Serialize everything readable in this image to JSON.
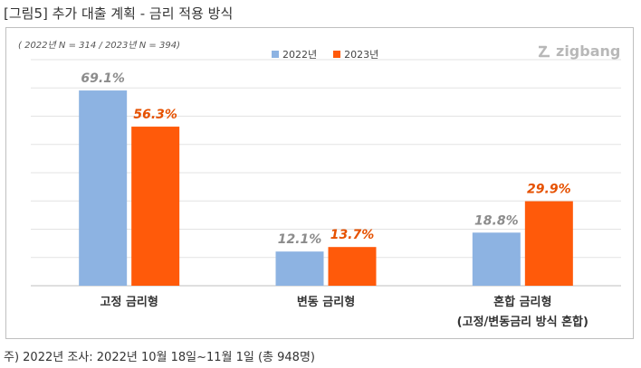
{
  "title": "[그림5] 추가 대출 계획 - 금리 적용 방식",
  "sample_note": "( 2022년 N = 314 / 2023년 N = 394)",
  "logo_text": "zigbang",
  "footnote": "주) 2022년 조사: 2022년 10월 18일~11월 1일 (총 948명)",
  "colors": {
    "2022": "#8db3e2",
    "2023": "#ff5a0a",
    "label2022": "#8c8c8c",
    "label2023": "#e65100"
  },
  "chart_data": {
    "type": "bar",
    "categories": [
      [
        "고정 금리형"
      ],
      [
        "변동 금리형"
      ],
      [
        "혼합 금리형",
        "(고정/변동금리 방식 혼합)"
      ]
    ],
    "series": [
      {
        "name": "2022년",
        "values": [
          69.1,
          12.1,
          18.8
        ],
        "labels": [
          "69.1%",
          "12.1%",
          "18.8%"
        ]
      },
      {
        "name": "2023년",
        "values": [
          56.3,
          13.7,
          29.9
        ],
        "labels": [
          "56.3%",
          "13.7%",
          "29.9%"
        ]
      }
    ],
    "ylim": [
      0,
      80
    ],
    "grid": true,
    "legend": "top-center"
  }
}
